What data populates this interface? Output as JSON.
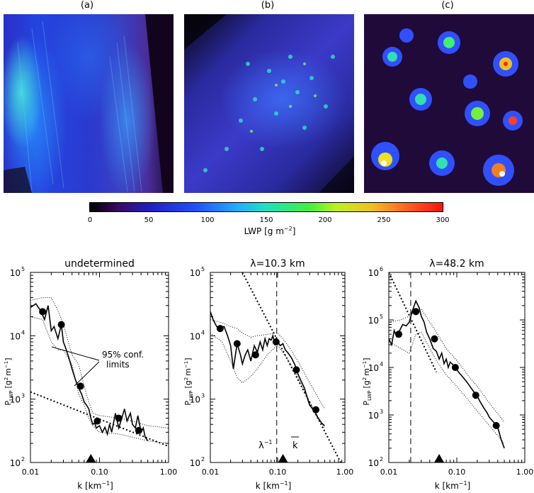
{
  "images": [
    {
      "label": "(a)"
    },
    {
      "label": "(b)"
    },
    {
      "label": "(c)"
    }
  ],
  "colorbar": {
    "ticks": [
      "0",
      "50",
      "100",
      "150",
      "200",
      "250",
      "300"
    ],
    "title": "LWP [g m",
    "title_sup": "−2",
    "title_end": "]"
  },
  "chart_data": [
    {
      "type": "line",
      "title": "undetermined",
      "xlabel": "k [km",
      "xlabel_sup": "−1",
      "xlabel_end": "]",
      "ylabel_main": "P",
      "ylabel_sub": "LWP",
      "ylabel_units": "[g",
      "ylabel_sup1": "2",
      "ylabel_m": "m",
      "ylabel_sup2": "−1",
      "ylabel_end": "]",
      "xscale": "log",
      "yscale": "log",
      "xlim": [
        0.01,
        1.0
      ],
      "ylim": [
        100,
        100000
      ],
      "xticks": [
        "0.01",
        "0.10",
        "1.00"
      ],
      "yticks": [
        {
          "base": "10",
          "exp": "2"
        },
        {
          "base": "10",
          "exp": "3"
        },
        {
          "base": "10",
          "exp": "4"
        },
        {
          "base": "10",
          "exp": "5"
        }
      ],
      "annotation": "95% conf.",
      "annotation2": "limits",
      "marker_k": 0.075,
      "spectrum": {
        "x": [
          0.01,
          0.012,
          0.014,
          0.016,
          0.018,
          0.02,
          0.022,
          0.025,
          0.028,
          0.03,
          0.033,
          0.036,
          0.04,
          0.045,
          0.05,
          0.055,
          0.06,
          0.065,
          0.07,
          0.075,
          0.08,
          0.085,
          0.09,
          0.1,
          0.11,
          0.12,
          0.13,
          0.14,
          0.15,
          0.17,
          0.19,
          0.21,
          0.23,
          0.25,
          0.28,
          0.3,
          0.33,
          0.36,
          0.4,
          0.43,
          0.46,
          0.5
        ],
        "y": [
          28000,
          32000,
          25000,
          18000,
          30000,
          12000,
          14000,
          9000,
          15000,
          8000,
          6000,
          4500,
          3000,
          2000,
          1500,
          1200,
          900,
          800,
          700,
          500,
          400,
          420,
          350,
          380,
          300,
          360,
          280,
          400,
          300,
          600,
          350,
          500,
          700,
          450,
          600,
          400,
          350,
          550,
          300,
          350,
          250,
          220
        ]
      },
      "points": {
        "x": [
          0.015,
          0.028,
          0.053,
          0.093,
          0.19,
          0.37
        ],
        "y": [
          24000,
          15000,
          1600,
          450,
          500,
          320
        ]
      },
      "upper_conf": {
        "x": [
          0.01,
          0.015,
          0.02,
          0.025,
          0.03,
          0.04,
          0.05,
          0.06,
          0.07,
          0.08,
          0.1,
          0.2,
          0.3,
          0.5,
          1.0
        ],
        "y": [
          36000,
          40000,
          40000,
          25000,
          15000,
          5000,
          3500,
          1600,
          900,
          600,
          550,
          500,
          450,
          380,
          350
        ]
      },
      "lower_conf": {
        "x": [
          0.01,
          0.015,
          0.02,
          0.025,
          0.03,
          0.04,
          0.05,
          0.06,
          0.07,
          0.08,
          0.1,
          0.2,
          0.3,
          0.5,
          1.0
        ],
        "y": [
          20000,
          18000,
          8000,
          6000,
          6000,
          3500,
          1200,
          800,
          500,
          380,
          300,
          280,
          250,
          220,
          200
        ]
      },
      "fit_line": {
        "x": [
          0.01,
          1.0
        ],
        "y": [
          1300,
          180
        ]
      }
    },
    {
      "type": "line",
      "title": "λ=10.3 km",
      "xlabel": "k [km",
      "xlabel_sup": "−1",
      "xlabel_end": "]",
      "ylabel_main": "P",
      "ylabel_sub": "LWP",
      "ylabel_units": "[g",
      "ylabel_sup1": "2",
      "ylabel_m": "m",
      "ylabel_sup2": "−1",
      "ylabel_end": "]",
      "xscale": "log",
      "yscale": "log",
      "xlim": [
        0.01,
        1.0
      ],
      "ylim": [
        100,
        100000
      ],
      "xticks": [
        "0.01",
        "0.10",
        "1.00"
      ],
      "yticks": [
        {
          "base": "10",
          "exp": "2"
        },
        {
          "base": "10",
          "exp": "3"
        },
        {
          "base": "10",
          "exp": "4"
        },
        {
          "base": "10",
          "exp": "5"
        }
      ],
      "lambda_label": "λ",
      "lambda_sup": "−1",
      "kbar_label": "k",
      "vline_k": 0.097,
      "marker_k": 0.12,
      "spectrum": {
        "x": [
          0.01,
          0.011,
          0.012,
          0.013,
          0.014,
          0.016,
          0.018,
          0.02,
          0.022,
          0.025,
          0.028,
          0.03,
          0.033,
          0.036,
          0.04,
          0.045,
          0.05,
          0.055,
          0.06,
          0.065,
          0.07,
          0.075,
          0.08,
          0.085,
          0.09,
          0.095,
          0.1,
          0.11,
          0.12,
          0.13,
          0.14,
          0.16,
          0.18,
          0.2,
          0.22,
          0.25,
          0.28,
          0.3,
          0.35,
          0.4,
          0.45,
          0.5
        ],
        "y": [
          24000,
          18000,
          15000,
          13000,
          13500,
          14000,
          10000,
          7000,
          3000,
          7500,
          5000,
          3600,
          5000,
          6000,
          4000,
          7000,
          5500,
          8000,
          6000,
          9000,
          7000,
          9000,
          8500,
          10000,
          7500,
          9000,
          8000,
          7000,
          7500,
          6000,
          5500,
          4500,
          3500,
          2500,
          2000,
          1500,
          1000,
          800,
          650,
          500,
          420,
          380
        ]
      },
      "points": {
        "x": [
          0.014,
          0.025,
          0.047,
          0.095,
          0.19,
          0.37
        ],
        "y": [
          13000,
          7500,
          5000,
          8000,
          2900,
          680
        ]
      },
      "upper_conf": {
        "x": [
          0.01,
          0.015,
          0.02,
          0.025,
          0.03,
          0.04,
          0.05,
          0.07,
          0.09,
          0.1,
          0.12,
          0.15,
          0.2,
          0.3,
          0.5
        ],
        "y": [
          18000,
          16000,
          14000,
          13000,
          11000,
          9500,
          10000,
          10500,
          11000,
          11000,
          9000,
          6500,
          4000,
          1800,
          700
        ]
      },
      "lower_conf": {
        "x": [
          0.01,
          0.015,
          0.02,
          0.025,
          0.03,
          0.04,
          0.05,
          0.07,
          0.09,
          0.1,
          0.12,
          0.15,
          0.2,
          0.3,
          0.5
        ],
        "y": [
          11000,
          8000,
          4000,
          2200,
          1800,
          2300,
          3000,
          5000,
          6500,
          7000,
          5500,
          3800,
          2200,
          900,
          350
        ]
      },
      "fit_line": {
        "x": [
          0.03,
          1.0
        ],
        "y": [
          100000,
          75
        ]
      }
    },
    {
      "type": "line",
      "title": "λ=48.2 km",
      "xlabel": "k [km",
      "xlabel_sup": "−1",
      "xlabel_end": "]",
      "ylabel_main": "P",
      "ylabel_sub": "LWP",
      "ylabel_units": "[g",
      "ylabel_sup1": "2",
      "ylabel_m": "m",
      "ylabel_sup2": "−1",
      "ylabel_end": "]",
      "xscale": "log",
      "yscale": "log",
      "xlim": [
        0.01,
        1.0
      ],
      "ylim": [
        100,
        1000000
      ],
      "xticks": [
        "0.01",
        "0.10",
        "1.00"
      ],
      "yticks": [
        {
          "base": "10",
          "exp": "2"
        },
        {
          "base": "10",
          "exp": "3"
        },
        {
          "base": "10",
          "exp": "4"
        },
        {
          "base": "10",
          "exp": "5"
        },
        {
          "base": "10",
          "exp": "6"
        }
      ],
      "vline_k": 0.021,
      "marker_k": 0.055,
      "spectrum": {
        "x": [
          0.01,
          0.011,
          0.012,
          0.013,
          0.014,
          0.016,
          0.018,
          0.02,
          0.022,
          0.025,
          0.028,
          0.03,
          0.033,
          0.036,
          0.04,
          0.045,
          0.05,
          0.055,
          0.06,
          0.065,
          0.07,
          0.075,
          0.08,
          0.09,
          0.1,
          0.11,
          0.12,
          0.14,
          0.16,
          0.18,
          0.2,
          0.22,
          0.25,
          0.28,
          0.3,
          0.35,
          0.4,
          0.45,
          0.5
        ],
        "y": [
          40000,
          30000,
          60000,
          45000,
          55000,
          80000,
          75000,
          90000,
          150000,
          250000,
          180000,
          120000,
          90000,
          55000,
          40000,
          25000,
          22000,
          15000,
          20000,
          12000,
          15000,
          10000,
          13000,
          11000,
          9000,
          7500,
          6500,
          5000,
          3800,
          3000,
          2500,
          1900,
          1400,
          1100,
          900,
          700,
          550,
          300,
          200
        ]
      },
      "points": {
        "x": [
          0.014,
          0.025,
          0.047,
          0.095,
          0.19,
          0.38
        ],
        "y": [
          50000,
          150000,
          40000,
          10000,
          2600,
          600
        ]
      },
      "upper_conf": {
        "x": [
          0.01,
          0.015,
          0.02,
          0.025,
          0.03,
          0.04,
          0.05,
          0.07,
          0.1,
          0.15,
          0.2,
          0.3,
          0.5
        ],
        "y": [
          90000,
          100000,
          120000,
          160000,
          170000,
          90000,
          55000,
          25000,
          14000,
          6500,
          4000,
          1800,
          700
        ]
      },
      "lower_conf": {
        "x": [
          0.01,
          0.015,
          0.02,
          0.025,
          0.03,
          0.04,
          0.05,
          0.07,
          0.1,
          0.15,
          0.2,
          0.3,
          0.5
        ],
        "y": [
          35000,
          25000,
          20000,
          50000,
          55000,
          25000,
          14000,
          7000,
          4000,
          2000,
          1200,
          600,
          250
        ]
      },
      "fit_line": {
        "x": [
          0.01,
          0.05
        ],
        "y": [
          1000000,
          8000
        ]
      }
    }
  ]
}
